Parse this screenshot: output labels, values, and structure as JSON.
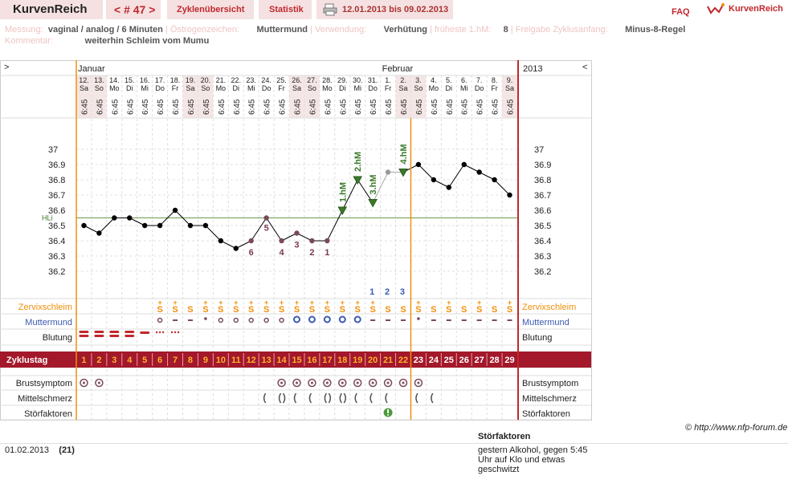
{
  "header": {
    "logo": "KurvenReich",
    "cycle_nav": "< # 47 >",
    "nav_items": [
      "Zyklenübersicht",
      "Statistik"
    ],
    "date_range": "12.01.2013 bis 09.02.2013",
    "faq": "FAQ",
    "brand": "KurvenReich"
  },
  "meta": {
    "row1": [
      {
        "label": "Messung:",
        "value": "vaginal / analog / 6 Minuten"
      },
      {
        "label": "Östrogenzeichen:",
        "value": "Muttermund"
      },
      {
        "label": "Verwendung:",
        "value": "Verhütung"
      },
      {
        "label": "früheste 1.hM:",
        "value": "8"
      },
      {
        "label": "Freigabe Zyklusanfang:",
        "value": "Minus-8-Regel"
      }
    ],
    "row2": {
      "label": "Kommentar:",
      "value": "weiterhin Schleim vom Mumu"
    }
  },
  "chart_data": {
    "type": "line",
    "nav_left": ">",
    "nav_right": "<",
    "year": "2013",
    "months": [
      {
        "label": "Januar",
        "day_index": 0
      },
      {
        "label": "Februar",
        "day_index": 20
      }
    ],
    "days": [
      "12.",
      "13.",
      "14.",
      "15.",
      "16.",
      "17.",
      "18.",
      "19.",
      "20.",
      "21.",
      "22.",
      "23.",
      "24.",
      "25.",
      "26.",
      "27.",
      "28.",
      "29.",
      "30.",
      "31.",
      "1.",
      "2.",
      "3.",
      "4.",
      "5.",
      "6.",
      "7.",
      "8.",
      "9."
    ],
    "weekdays": [
      "Sa",
      "So",
      "Mo",
      "Di",
      "Mi",
      "Do",
      "Fr",
      "Sa",
      "So",
      "Mo",
      "Di",
      "Mi",
      "Do",
      "Fr",
      "Sa",
      "So",
      "Mo",
      "Di",
      "Mi",
      "Do",
      "Fr",
      "Sa",
      "So",
      "Mo",
      "Di",
      "Mi",
      "Do",
      "Fr",
      "Sa"
    ],
    "weekend_indices": [
      0,
      1,
      7,
      8,
      14,
      15,
      21,
      22,
      28
    ],
    "time_label": "6:45",
    "cycle_days": [
      "1",
      "2",
      "3",
      "4",
      "5",
      "6",
      "7",
      "8",
      "9",
      "10",
      "11",
      "12",
      "13",
      "14",
      "15",
      "16",
      "17",
      "18",
      "19",
      "20",
      "21",
      "22",
      "23",
      "24",
      "25",
      "26",
      "27",
      "28",
      "29"
    ],
    "temperatures": [
      36.5,
      36.45,
      36.55,
      36.55,
      36.5,
      36.5,
      36.6,
      36.5,
      36.5,
      36.4,
      36.35,
      36.4,
      36.55,
      36.4,
      36.45,
      36.4,
      36.4,
      36.6,
      36.8,
      36.65,
      36.85,
      36.85,
      36.9,
      36.8,
      36.75,
      36.9,
      36.85,
      36.8,
      36.7
    ],
    "ylim": [
      36.2,
      37.0
    ],
    "yticks": [
      "37",
      "36.9",
      "36.8",
      "36.7",
      "36.6",
      "36.5",
      "36.4",
      "36.3",
      "36.2"
    ],
    "hl_label": "HLi",
    "hl_value": 36.55,
    "low_labels": [
      {
        "day": 11,
        "text": "6"
      },
      {
        "day": 12,
        "text": "5"
      },
      {
        "day": 13,
        "text": "4"
      },
      {
        "day": 14,
        "text": "3"
      },
      {
        "day": 15,
        "text": "2"
      },
      {
        "day": 16,
        "text": "1"
      }
    ],
    "high_labels": [
      {
        "day": 17,
        "text": "1.hM"
      },
      {
        "day": 18,
        "text": "2.hM"
      },
      {
        "day": 19,
        "text": "3.hM"
      },
      {
        "day": 21,
        "text": "4.hM"
      }
    ],
    "post_labels": [
      {
        "day": 19,
        "text": "1"
      },
      {
        "day": 20,
        "text": "2"
      },
      {
        "day": 21,
        "text": "3"
      }
    ],
    "rows": {
      "zervix": "Zervixschleim",
      "muttermund": "Muttermund",
      "blutung": "Blutung",
      "zyklustag": "Zyklustag",
      "brust": "Brustsymptom",
      "mittel": "Mittelschmerz",
      "stoer": "Störfaktoren"
    },
    "zervix_symbol": "S",
    "zervix_plus": "+",
    "zervix_days": [
      5,
      6,
      7,
      8,
      9,
      10,
      11,
      12,
      13,
      14,
      15,
      16,
      17,
      18,
      19,
      20,
      21,
      22,
      23,
      24,
      25,
      26,
      27,
      28
    ],
    "zervix_plus_days": [
      5,
      6,
      8,
      9,
      10,
      11,
      12,
      13,
      14,
      15,
      16,
      17,
      18,
      19,
      22,
      24,
      26,
      28
    ],
    "mumu": [
      "",
      "",
      "",
      "",
      "",
      "o",
      "-",
      "-",
      ".",
      "o",
      "o",
      "o",
      "o",
      "o",
      "O",
      "O",
      "O",
      "O",
      "O",
      "-",
      "-",
      "-",
      ".",
      "-",
      "-",
      "-",
      "-",
      "-",
      "-"
    ],
    "blutung": [
      "2",
      "2",
      "2",
      "2",
      "1",
      "d",
      "d",
      "",
      "",
      "",
      "",
      "",
      "",
      "",
      "",
      "",
      "",
      "",
      "",
      "",
      "",
      "",
      "",
      "",
      "",
      "",
      "",
      "",
      ""
    ],
    "brust_days": [
      0,
      1,
      13,
      14,
      15,
      16,
      17,
      18,
      19,
      20,
      21,
      22
    ],
    "mittel_days": [
      12,
      13,
      14,
      15,
      16,
      17,
      18,
      19,
      20,
      22,
      23
    ],
    "stoer_days": [
      20
    ],
    "colors": {
      "orange": "#f0900a",
      "red": "#c0282d",
      "green": "#3a7a2a",
      "purple": "#7a3a4a",
      "blue": "#3a5ab0"
    }
  },
  "footer": {
    "entry_date": "01.02.2013",
    "entry_day": "(21)",
    "note_title": "Störfaktoren",
    "note_text": "gestern Alkohol, gegen 5:45 Uhr auf Klo und etwas geschwitzt",
    "copyright": "© http://www.nfp-forum.de"
  }
}
